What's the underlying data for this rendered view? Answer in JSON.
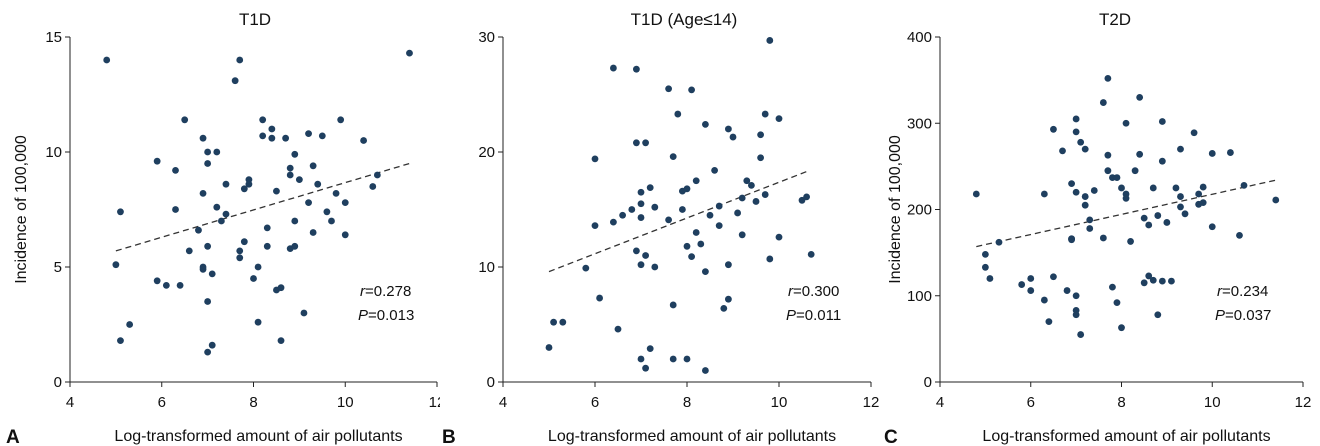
{
  "chart_data": [
    {
      "type": "scatter",
      "panel": "A",
      "title": "T1D",
      "xlabel": "Log-transformed amount of air pollutants",
      "ylabel": "Incidence of 100,000",
      "xlim": [
        4,
        12
      ],
      "ylim": [
        0,
        15
      ],
      "xticks": [
        "4",
        "6",
        "8",
        "10",
        "12"
      ],
      "yticks": [
        "0",
        "5",
        "10",
        "15"
      ],
      "xtick_values": [
        4,
        6,
        8,
        10,
        12
      ],
      "ytick_values": [
        0,
        5,
        10,
        15
      ],
      "stat_r_label": "r",
      "stat_r_value": "=0.278",
      "stat_p_label": "P",
      "stat_p_value": "=0.013",
      "trend": {
        "x": [
          5.0,
          11.4
        ],
        "y": [
          5.7,
          9.5
        ]
      },
      "marker_color": "#1f3f5f",
      "points": [
        [
          4.8,
          14.0
        ],
        [
          5.0,
          5.1
        ],
        [
          5.1,
          7.4
        ],
        [
          5.1,
          1.8
        ],
        [
          5.3,
          2.5
        ],
        [
          5.9,
          9.6
        ],
        [
          5.9,
          4.4
        ],
        [
          6.1,
          4.2
        ],
        [
          6.3,
          9.2
        ],
        [
          6.3,
          7.5
        ],
        [
          6.4,
          4.2
        ],
        [
          6.5,
          11.4
        ],
        [
          6.6,
          5.7
        ],
        [
          6.8,
          6.6
        ],
        [
          6.9,
          8.2
        ],
        [
          6.9,
          10.6
        ],
        [
          6.9,
          5.0
        ],
        [
          7.0,
          10.0
        ],
        [
          7.0,
          9.5
        ],
        [
          7.0,
          5.9
        ],
        [
          6.9,
          4.9
        ],
        [
          7.0,
          3.5
        ],
        [
          7.0,
          1.3
        ],
        [
          7.1,
          1.6
        ],
        [
          7.1,
          4.7
        ],
        [
          7.2,
          10.0
        ],
        [
          7.2,
          7.6
        ],
        [
          7.3,
          7.0
        ],
        [
          7.4,
          7.3
        ],
        [
          7.4,
          8.6
        ],
        [
          7.6,
          13.1
        ],
        [
          7.7,
          14.0
        ],
        [
          7.7,
          5.7
        ],
        [
          7.7,
          5.4
        ],
        [
          7.8,
          8.4
        ],
        [
          7.8,
          6.1
        ],
        [
          7.9,
          8.8
        ],
        [
          7.9,
          8.6
        ],
        [
          8.0,
          4.5
        ],
        [
          8.1,
          2.6
        ],
        [
          8.1,
          5.0
        ],
        [
          8.2,
          11.4
        ],
        [
          8.2,
          10.7
        ],
        [
          8.3,
          6.7
        ],
        [
          8.3,
          5.9
        ],
        [
          8.4,
          11.0
        ],
        [
          8.4,
          10.6
        ],
        [
          8.5,
          4.0
        ],
        [
          8.5,
          8.3
        ],
        [
          8.6,
          4.1
        ],
        [
          8.6,
          1.8
        ],
        [
          8.7,
          10.6
        ],
        [
          8.8,
          9.3
        ],
        [
          8.8,
          9.0
        ],
        [
          8.9,
          9.9
        ],
        [
          8.8,
          5.8
        ],
        [
          8.9,
          5.9
        ],
        [
          8.9,
          7.0
        ],
        [
          9.0,
          8.8
        ],
        [
          9.1,
          3.0
        ],
        [
          9.2,
          10.8
        ],
        [
          9.2,
          7.8
        ],
        [
          9.3,
          6.5
        ],
        [
          9.3,
          9.4
        ],
        [
          9.4,
          8.6
        ],
        [
          9.5,
          10.7
        ],
        [
          9.6,
          7.4
        ],
        [
          9.7,
          7.0
        ],
        [
          9.8,
          8.2
        ],
        [
          9.9,
          11.4
        ],
        [
          10.0,
          6.4
        ],
        [
          10.0,
          7.8
        ],
        [
          10.4,
          10.5
        ],
        [
          10.6,
          8.5
        ],
        [
          10.7,
          9.0
        ],
        [
          11.4,
          14.3
        ]
      ]
    },
    {
      "type": "scatter",
      "panel": "B",
      "title": "T1D (Age≤14)",
      "xlabel": "Log-transformed amount of air pollutants",
      "ylabel": "",
      "xlim": [
        4,
        12
      ],
      "ylim": [
        0,
        30
      ],
      "xticks": [
        "4",
        "6",
        "8",
        "10",
        "12"
      ],
      "yticks": [
        "0",
        "10",
        "20",
        "30"
      ],
      "xtick_values": [
        4,
        6,
        8,
        10,
        12
      ],
      "ytick_values": [
        0,
        10,
        20,
        30
      ],
      "stat_r_label": "r",
      "stat_r_value": "=0.300",
      "stat_p_label": "P",
      "stat_p_value": "=0.011",
      "trend": {
        "x": [
          5.0,
          10.6
        ],
        "y": [
          9.6,
          18.3
        ]
      },
      "marker_color": "#1f3f5f",
      "points": [
        [
          5.0,
          3.0
        ],
        [
          5.1,
          5.2
        ],
        [
          5.3,
          5.2
        ],
        [
          5.8,
          9.9
        ],
        [
          6.0,
          19.4
        ],
        [
          6.0,
          13.6
        ],
        [
          6.1,
          7.3
        ],
        [
          6.4,
          27.3
        ],
        [
          6.4,
          13.9
        ],
        [
          6.5,
          4.6
        ],
        [
          6.6,
          14.5
        ],
        [
          6.8,
          15.0
        ],
        [
          6.9,
          27.2
        ],
        [
          6.9,
          20.8
        ],
        [
          6.9,
          11.4
        ],
        [
          7.0,
          16.5
        ],
        [
          7.0,
          15.5
        ],
        [
          7.0,
          14.3
        ],
        [
          7.0,
          10.2
        ],
        [
          7.0,
          2.0
        ],
        [
          7.1,
          20.8
        ],
        [
          7.1,
          11.0
        ],
        [
          7.1,
          1.2
        ],
        [
          7.2,
          16.9
        ],
        [
          7.2,
          2.9
        ],
        [
          7.3,
          10.0
        ],
        [
          7.3,
          15.2
        ],
        [
          7.6,
          25.5
        ],
        [
          7.6,
          14.1
        ],
        [
          7.7,
          19.6
        ],
        [
          7.7,
          6.7
        ],
        [
          7.7,
          2.0
        ],
        [
          7.8,
          23.3
        ],
        [
          7.9,
          16.6
        ],
        [
          7.9,
          15.0
        ],
        [
          8.0,
          16.8
        ],
        [
          8.0,
          11.8
        ],
        [
          8.0,
          2.0
        ],
        [
          8.1,
          25.4
        ],
        [
          8.1,
          10.9
        ],
        [
          8.2,
          17.5
        ],
        [
          8.2,
          13.0
        ],
        [
          8.3,
          12.0
        ],
        [
          8.4,
          22.4
        ],
        [
          8.4,
          1.0
        ],
        [
          8.4,
          9.6
        ],
        [
          8.5,
          14.5
        ],
        [
          8.6,
          18.4
        ],
        [
          8.7,
          15.3
        ],
        [
          8.7,
          13.6
        ],
        [
          8.8,
          6.4
        ],
        [
          8.9,
          22.0
        ],
        [
          8.9,
          10.2
        ],
        [
          8.9,
          7.2
        ],
        [
          9.0,
          21.3
        ],
        [
          9.1,
          14.7
        ],
        [
          9.2,
          16.0
        ],
        [
          9.2,
          12.8
        ],
        [
          9.3,
          17.5
        ],
        [
          9.4,
          17.1
        ],
        [
          9.5,
          15.7
        ],
        [
          9.6,
          21.5
        ],
        [
          9.6,
          19.5
        ],
        [
          9.7,
          23.3
        ],
        [
          9.7,
          16.3
        ],
        [
          9.8,
          29.7
        ],
        [
          9.8,
          10.7
        ],
        [
          10.0,
          22.9
        ],
        [
          10.0,
          12.6
        ],
        [
          10.5,
          15.8
        ],
        [
          10.6,
          16.1
        ],
        [
          10.7,
          11.1
        ]
      ]
    },
    {
      "type": "scatter",
      "panel": "C",
      "title": "T2D",
      "xlabel": "Log-transformed amount of air pollutants",
      "ylabel": "Incidence of 100,000",
      "xlim": [
        4,
        12
      ],
      "ylim": [
        0,
        400
      ],
      "xticks": [
        "4",
        "6",
        "8",
        "10",
        "12"
      ],
      "yticks": [
        "0",
        "100",
        "200",
        "300",
        "400"
      ],
      "xtick_values": [
        4,
        6,
        8,
        10,
        12
      ],
      "ytick_values": [
        0,
        100,
        200,
        300,
        400
      ],
      "stat_r_label": "r",
      "stat_r_value": "=0.234",
      "stat_p_label": "P",
      "stat_p_value": "=0.037",
      "trend": {
        "x": [
          4.8,
          11.4
        ],
        "y": [
          157,
          234
        ]
      },
      "marker_color": "#1f3f5f",
      "points": [
        [
          4.8,
          218
        ],
        [
          5.0,
          133
        ],
        [
          5.0,
          148
        ],
        [
          5.1,
          120
        ],
        [
          5.3,
          162
        ],
        [
          5.8,
          113
        ],
        [
          6.0,
          106
        ],
        [
          6.0,
          120
        ],
        [
          6.3,
          218
        ],
        [
          6.3,
          95
        ],
        [
          6.4,
          70
        ],
        [
          6.5,
          122
        ],
        [
          6.5,
          293
        ],
        [
          6.7,
          268
        ],
        [
          6.8,
          106
        ],
        [
          6.9,
          230
        ],
        [
          6.9,
          166
        ],
        [
          6.9,
          165
        ],
        [
          6.9,
          166
        ],
        [
          7.0,
          305
        ],
        [
          7.0,
          290
        ],
        [
          7.0,
          220
        ],
        [
          7.0,
          100
        ],
        [
          7.0,
          83
        ],
        [
          7.0,
          78
        ],
        [
          7.1,
          55
        ],
        [
          7.1,
          278
        ],
        [
          7.2,
          270
        ],
        [
          7.2,
          215
        ],
        [
          7.2,
          205
        ],
        [
          7.3,
          188
        ],
        [
          7.3,
          178
        ],
        [
          7.4,
          222
        ],
        [
          7.6,
          324
        ],
        [
          7.6,
          167
        ],
        [
          7.7,
          352
        ],
        [
          7.7,
          263
        ],
        [
          7.7,
          245
        ],
        [
          7.8,
          237
        ],
        [
          7.8,
          110
        ],
        [
          7.9,
          92
        ],
        [
          7.9,
          237
        ],
        [
          8.0,
          225
        ],
        [
          8.0,
          63
        ],
        [
          8.1,
          300
        ],
        [
          8.1,
          218
        ],
        [
          8.1,
          213
        ],
        [
          8.2,
          163
        ],
        [
          8.3,
          245
        ],
        [
          8.4,
          330
        ],
        [
          8.4,
          264
        ],
        [
          8.5,
          190
        ],
        [
          8.5,
          115
        ],
        [
          8.6,
          123
        ],
        [
          8.6,
          182
        ],
        [
          8.7,
          118
        ],
        [
          8.7,
          225
        ],
        [
          8.8,
          78
        ],
        [
          8.9,
          302
        ],
        [
          8.9,
          256
        ],
        [
          8.8,
          193
        ],
        [
          8.9,
          117
        ],
        [
          9.0,
          185
        ],
        [
          9.1,
          117
        ],
        [
          9.2,
          225
        ],
        [
          9.3,
          215
        ],
        [
          9.3,
          270
        ],
        [
          9.3,
          203
        ],
        [
          9.4,
          195
        ],
        [
          9.6,
          289
        ],
        [
          9.7,
          218
        ],
        [
          9.7,
          206
        ],
        [
          9.8,
          226
        ],
        [
          9.8,
          208
        ],
        [
          10.0,
          265
        ],
        [
          10.0,
          180
        ],
        [
          10.4,
          266
        ],
        [
          10.6,
          170
        ],
        [
          10.7,
          228
        ],
        [
          11.4,
          211
        ]
      ]
    }
  ]
}
